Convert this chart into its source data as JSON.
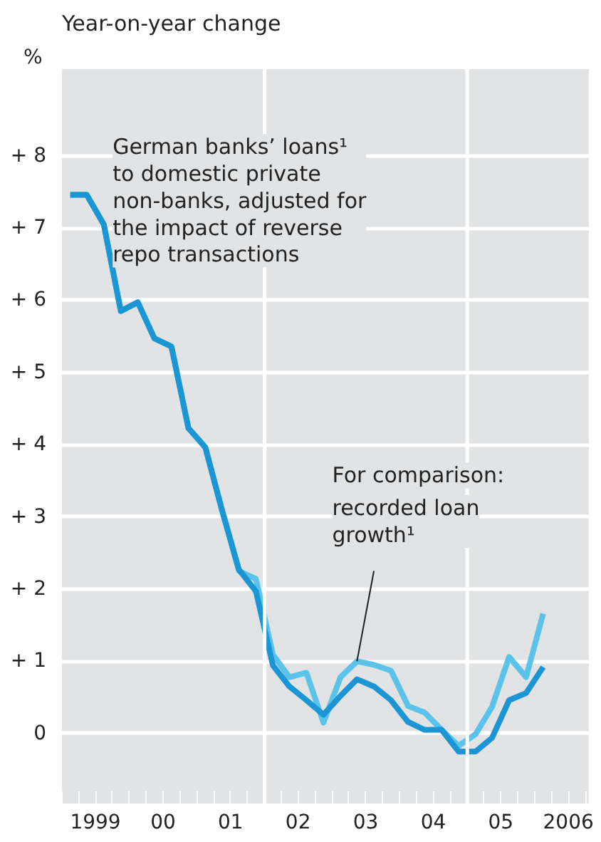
{
  "chart_data": {
    "type": "line",
    "title": "Year-on-year change",
    "ylabel": "%",
    "x": [
      "1999-02-15",
      "1999-05-15",
      "1999-08-15",
      "1999-11-15",
      "2000-02-15",
      "2000-05-15",
      "2000-08-15",
      "2000-11-15",
      "2001-02-15",
      "2001-05-15",
      "2001-08-15",
      "2001-11-15",
      "2002-02-15",
      "2002-05-15",
      "2002-08-15",
      "2002-11-15",
      "2003-02-15",
      "2003-05-15",
      "2003-08-15",
      "2003-11-15",
      "2004-02-15",
      "2004-05-15",
      "2004-08-15",
      "2004-11-15",
      "2005-02-15",
      "2005-05-15",
      "2005-08-15",
      "2005-11-15",
      "2006-02-15"
    ],
    "series": [
      {
        "color": "#5bc3e9",
        "values": [
          7.46,
          7.46,
          7.05,
          5.85,
          5.97,
          5.47,
          5.36,
          4.23,
          3.96,
          3.1,
          2.25,
          2.14,
          1.09,
          0.78,
          0.84,
          0.15,
          0.78,
          1.0,
          0.95,
          0.87,
          0.38,
          0.29,
          0.05,
          -0.17,
          -0.01,
          0.37,
          1.06,
          0.78,
          1.66
        ]
      },
      {
        "color": "#1b95d3",
        "values": [
          7.46,
          7.46,
          7.05,
          5.85,
          5.97,
          5.47,
          5.36,
          4.23,
          3.96,
          3.1,
          2.27,
          1.97,
          0.94,
          0.65,
          0.46,
          0.26,
          0.52,
          0.75,
          0.65,
          0.46,
          0.16,
          0.05,
          0.05,
          -0.25,
          -0.25,
          -0.06,
          0.46,
          0.56,
          0.92
        ]
      }
    ],
    "xlim": [
      "1999-01-01",
      "2006-10-20"
    ],
    "ylim": [
      -1,
      9.2
    ],
    "xticks": [
      {
        "value": "1999-01-01",
        "label": null
      },
      {
        "value": "1999-04-01",
        "label": null
      },
      {
        "value": "1999-07-01",
        "label": "1999"
      },
      {
        "value": "1999-10-01",
        "label": null
      },
      {
        "value": "2000-01-01",
        "label": null
      },
      {
        "value": "2000-04-01",
        "label": null
      },
      {
        "value": "2000-07-01",
        "label": "00"
      },
      {
        "value": "2000-10-01",
        "label": null
      },
      {
        "value": "2001-01-01",
        "label": null
      },
      {
        "value": "2001-04-01",
        "label": null
      },
      {
        "value": "2001-07-01",
        "label": "01"
      },
      {
        "value": "2001-10-01",
        "label": null
      },
      {
        "value": "2002-01-01",
        "label": null
      },
      {
        "value": "2002-04-01",
        "label": null
      },
      {
        "value": "2002-07-01",
        "label": "02"
      },
      {
        "value": "2002-10-01",
        "label": null
      },
      {
        "value": "2003-01-01",
        "label": null
      },
      {
        "value": "2003-04-01",
        "label": null
      },
      {
        "value": "2003-07-01",
        "label": "03"
      },
      {
        "value": "2003-10-01",
        "label": null
      },
      {
        "value": "2004-01-01",
        "label": null
      },
      {
        "value": "2004-04-01",
        "label": null
      },
      {
        "value": "2004-07-01",
        "label": "04"
      },
      {
        "value": "2004-10-01",
        "label": null
      },
      {
        "value": "2005-01-01",
        "label": null
      },
      {
        "value": "2005-04-01",
        "label": null
      },
      {
        "value": "2005-07-01",
        "label": "05"
      },
      {
        "value": "2005-10-01",
        "label": null
      },
      {
        "value": "2006-01-01",
        "label": null
      },
      {
        "value": "2006-04-01",
        "label": null
      },
      {
        "value": "2006-07-01",
        "label": "2006"
      },
      {
        "value": "2006-10-01",
        "label": null
      }
    ],
    "yticks": [
      {
        "value": 0,
        "label": "0"
      },
      {
        "value": 1,
        "label": "+ 1"
      },
      {
        "value": 2,
        "label": "+ 2"
      },
      {
        "value": 3,
        "label": "+ 3"
      },
      {
        "value": 4,
        "label": "+ 4"
      },
      {
        "value": 5,
        "label": "+ 5"
      },
      {
        "value": 6,
        "label": "+ 6"
      },
      {
        "value": 7,
        "label": "+ 7"
      },
      {
        "value": 8,
        "label": "+ 8"
      }
    ],
    "grid": "y",
    "ref_lines": [
      {
        "axis": "x",
        "value": "2002-01-01",
        "color": "#ffffff"
      },
      {
        "axis": "x",
        "value": "2005-01-01",
        "color": "#ffffff"
      }
    ],
    "annotations": [
      "German banks’ loans¹\nto domestic private\nnon-banks, adjusted for\nthe impact of reverse\nrepo transactions",
      "For comparison:",
      {
        "text": "recorded loan\ngrowth¹",
        "x": "2003-05-15",
        "y": 1.0
      }
    ]
  }
}
